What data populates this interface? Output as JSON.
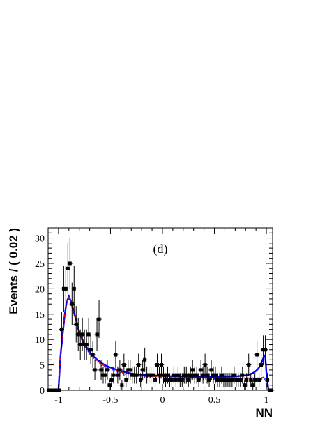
{
  "chart_data": {
    "type": "line",
    "xlabel": "NN",
    "ylabel": "Events / ( 0.02 )",
    "annotation": "(d)",
    "xlim": [
      -1.1,
      1.06
    ],
    "ylim": [
      0,
      32
    ],
    "x_ticks": [
      -1,
      -0.5,
      0,
      0.5,
      1
    ],
    "x_tick_labels": [
      "-1",
      "-0.5",
      "0",
      "0.5",
      "1"
    ],
    "y_ticks": [
      0,
      5,
      10,
      15,
      20,
      25,
      30
    ],
    "y_tick_labels": [
      "0",
      "5",
      "10",
      "15",
      "20",
      "25",
      "30"
    ],
    "grid": false,
    "legend": "none",
    "colors": {
      "data": "#000000",
      "total_fit": "#0000ff",
      "component_dashed": "#ff0000",
      "component_dotted": "#0000ff"
    },
    "data_points": {
      "x": [
        -1.09,
        -1.07,
        -1.05,
        -1.03,
        -1.01,
        -0.99,
        -0.97,
        -0.95,
        -0.93,
        -0.91,
        -0.89,
        -0.87,
        -0.85,
        -0.83,
        -0.81,
        -0.79,
        -0.77,
        -0.75,
        -0.73,
        -0.71,
        -0.69,
        -0.67,
        -0.65,
        -0.63,
        -0.61,
        -0.59,
        -0.57,
        -0.55,
        -0.53,
        -0.51,
        -0.49,
        -0.47,
        -0.45,
        -0.43,
        -0.41,
        -0.39,
        -0.37,
        -0.35,
        -0.33,
        -0.31,
        -0.29,
        -0.27,
        -0.25,
        -0.23,
        -0.21,
        -0.19,
        -0.17,
        -0.15,
        -0.13,
        -0.11,
        -0.09,
        -0.07,
        -0.05,
        -0.03,
        -0.01,
        0.01,
        0.03,
        0.05,
        0.07,
        0.09,
        0.11,
        0.13,
        0.15,
        0.17,
        0.19,
        0.21,
        0.23,
        0.25,
        0.27,
        0.29,
        0.31,
        0.33,
        0.35,
        0.37,
        0.39,
        0.41,
        0.43,
        0.45,
        0.47,
        0.49,
        0.51,
        0.53,
        0.55,
        0.57,
        0.59,
        0.61,
        0.63,
        0.65,
        0.67,
        0.69,
        0.71,
        0.73,
        0.75,
        0.77,
        0.79,
        0.81,
        0.83,
        0.85,
        0.87,
        0.89,
        0.91,
        0.93,
        0.95,
        0.97,
        0.99,
        1.01,
        1.03,
        1.05
      ],
      "y": [
        0,
        0,
        0,
        0,
        0,
        0,
        12,
        20,
        20,
        24,
        25,
        17,
        20,
        13,
        11,
        9,
        11,
        9,
        9,
        11,
        8,
        7,
        4,
        11,
        14,
        4,
        3,
        3,
        4,
        1,
        2,
        3,
        7,
        3,
        4,
        1,
        5,
        2,
        4,
        4,
        3,
        3,
        3,
        5,
        2,
        4,
        6,
        3,
        3,
        3,
        3,
        2,
        5,
        3,
        5,
        3,
        2,
        3,
        2,
        2,
        3,
        2,
        3,
        2,
        2,
        3,
        3,
        2,
        3,
        4,
        3,
        3,
        2,
        4,
        3,
        5,
        3,
        2,
        4,
        3,
        3,
        2,
        2,
        3,
        2,
        2,
        2,
        2,
        2,
        3,
        2,
        2,
        2,
        3,
        1,
        2,
        5,
        2,
        1,
        2,
        7,
        2,
        5,
        8,
        8,
        2,
        0,
        0
      ],
      "y_err": [
        0,
        0,
        0,
        0,
        0,
        0,
        3.5,
        4.5,
        4.5,
        5,
        5,
        4.2,
        4.5,
        3.6,
        3.3,
        3,
        3.3,
        3,
        3,
        3.3,
        2.8,
        2.6,
        2,
        3.3,
        3.7,
        2,
        1.7,
        1.7,
        2,
        1,
        1.4,
        1.7,
        2.6,
        1.7,
        2,
        1,
        2.2,
        1.4,
        2,
        2,
        1.7,
        1.7,
        1.7,
        2.2,
        1.4,
        2,
        2.4,
        1.7,
        1.7,
        1.7,
        1.7,
        1.4,
        2.2,
        1.7,
        2.2,
        1.7,
        1.4,
        1.7,
        1.4,
        1.4,
        1.7,
        1.4,
        1.7,
        1.4,
        1.4,
        1.7,
        1.7,
        1.4,
        1.7,
        2,
        1.7,
        1.7,
        1.4,
        2,
        1.7,
        2.2,
        1.7,
        1.4,
        2,
        1.7,
        1.7,
        1.4,
        1.4,
        1.7,
        1.4,
        1.4,
        1.4,
        1.4,
        1.4,
        1.7,
        1.4,
        1.4,
        1.4,
        1.7,
        1,
        1.4,
        2.2,
        1.4,
        1,
        1.4,
        2.6,
        1.4,
        2.2,
        2.8,
        2.8,
        1.4,
        0,
        0
      ]
    },
    "series": [
      {
        "style": "solid",
        "color": "#0000ff",
        "x": [
          -1.1,
          -1.02,
          -1.0,
          -0.98,
          -0.96,
          -0.94,
          -0.92,
          -0.9,
          -0.88,
          -0.86,
          -0.84,
          -0.82,
          -0.8,
          -0.78,
          -0.76,
          -0.74,
          -0.72,
          -0.7,
          -0.66,
          -0.62,
          -0.58,
          -0.54,
          -0.5,
          -0.46,
          -0.42,
          -0.38,
          -0.34,
          -0.3,
          -0.26,
          -0.22,
          -0.18,
          -0.14,
          -0.1,
          -0.06,
          -0.02,
          0.02,
          0.06,
          0.1,
          0.14,
          0.18,
          0.22,
          0.26,
          0.3,
          0.34,
          0.38,
          0.42,
          0.46,
          0.5,
          0.54,
          0.58,
          0.62,
          0.66,
          0.7,
          0.74,
          0.78,
          0.82,
          0.86,
          0.88,
          0.9,
          0.92,
          0.94,
          0.96,
          0.98,
          0.99,
          1.0,
          1.02,
          1.06
        ],
        "y": [
          0,
          0,
          0.2,
          7,
          11,
          15,
          17.5,
          18.5,
          17.5,
          16,
          14.5,
          13,
          11.5,
          10.5,
          9.5,
          8.8,
          8.2,
          7.6,
          6.6,
          5.9,
          5.3,
          4.8,
          4.5,
          4.2,
          3.9,
          3.7,
          3.5,
          3.3,
          3.2,
          3.1,
          3.0,
          3.0,
          2.9,
          2.9,
          2.8,
          2.8,
          2.8,
          2.7,
          2.7,
          2.7,
          2.7,
          2.6,
          2.6,
          2.6,
          2.6,
          2.6,
          2.6,
          2.6,
          2.6,
          2.6,
          2.7,
          2.7,
          2.7,
          2.8,
          2.9,
          3.0,
          3.3,
          3.5,
          3.8,
          4.2,
          4.8,
          5.8,
          6.8,
          6.5,
          3.5,
          0,
          0
        ]
      },
      {
        "style": "dashed",
        "color": "#ff0000",
        "x": [
          -1.1,
          -1.02,
          -1.0,
          -0.98,
          -0.96,
          -0.94,
          -0.92,
          -0.9,
          -0.88,
          -0.86,
          -0.84,
          -0.82,
          -0.8,
          -0.78,
          -0.76,
          -0.74,
          -0.72,
          -0.7,
          -0.66,
          -0.62,
          -0.58,
          -0.54,
          -0.5,
          -0.46,
          -0.42,
          -0.38,
          -0.34,
          -0.3,
          -0.26,
          -0.22,
          -0.18,
          -0.14,
          -0.1,
          -0.06,
          -0.02,
          0.02,
          0.06,
          0.1,
          0.14,
          0.18,
          0.22,
          0.26,
          0.3,
          0.34,
          0.38,
          0.42,
          0.46,
          0.5,
          0.54,
          0.58,
          0.62,
          0.66,
          0.7,
          0.74,
          0.78,
          0.82,
          0.86,
          0.88,
          0.9,
          0.92,
          0.94,
          0.96,
          0.98,
          0.99,
          1.0,
          1.02,
          1.06
        ],
        "y": [
          0,
          0,
          0.2,
          7,
          11,
          15,
          17.5,
          18.3,
          17.3,
          15.8,
          14.3,
          12.8,
          11.3,
          10.3,
          9.3,
          8.6,
          8.0,
          7.4,
          6.4,
          5.7,
          5.1,
          4.6,
          4.3,
          4.0,
          3.7,
          3.5,
          3.3,
          3.1,
          3.0,
          2.9,
          2.8,
          2.8,
          2.7,
          2.7,
          2.6,
          2.6,
          2.6,
          2.5,
          2.5,
          2.5,
          2.5,
          2.4,
          2.4,
          2.4,
          2.4,
          2.4,
          2.4,
          2.4,
          2.4,
          2.4,
          2.4,
          2.4,
          2.4,
          2.4,
          2.4,
          2.4,
          2.4,
          2.4,
          2.4,
          2.4,
          2.4,
          2.5,
          2.6,
          2.6,
          1.5,
          0,
          0
        ]
      },
      {
        "style": "dotted",
        "color": "#0000ff",
        "x": [
          -1.1,
          -1.02,
          -1.0,
          -0.98,
          -0.96,
          -0.94,
          -0.92,
          -0.9,
          -0.88,
          -0.86,
          -0.84,
          -0.82,
          -0.8,
          -0.78,
          -0.76,
          -0.74,
          -0.72,
          -0.7,
          -0.66,
          -0.62,
          -0.58,
          -0.54,
          -0.5,
          -0.46,
          -0.42,
          -0.38,
          -0.34,
          -0.3,
          -0.26,
          -0.22,
          -0.18,
          -0.14,
          -0.1,
          -0.06,
          -0.02,
          0.02,
          0.06,
          0.1,
          0.14,
          0.18,
          0.22,
          0.26,
          0.3,
          0.34,
          0.38,
          0.42,
          0.46,
          0.5,
          0.54,
          0.58,
          0.62,
          0.66,
          0.7,
          0.74,
          0.78,
          0.82,
          0.86,
          0.88,
          0.9,
          0.92,
          0.94,
          0.96,
          0.98,
          0.99,
          1.0,
          1.02,
          1.06
        ],
        "y": [
          0,
          0,
          0.2,
          7,
          11,
          15,
          17.3,
          18.1,
          17.1,
          15.6,
          14.1,
          12.6,
          11.1,
          10.1,
          9.1,
          8.4,
          7.8,
          7.2,
          6.2,
          5.5,
          4.9,
          4.4,
          4.1,
          3.8,
          3.5,
          3.3,
          3.1,
          2.9,
          2.8,
          2.7,
          2.6,
          2.6,
          2.5,
          2.5,
          2.4,
          2.4,
          2.4,
          2.3,
          2.3,
          2.3,
          2.3,
          2.2,
          2.2,
          2.2,
          2.2,
          2.2,
          2.2,
          2.2,
          2.2,
          2.2,
          2.2,
          2.2,
          2.2,
          2.2,
          2.2,
          2.2,
          2.2,
          2.2,
          2.2,
          2.2,
          2.2,
          2.2,
          2.2,
          2.2,
          1.2,
          0,
          0
        ]
      }
    ]
  }
}
